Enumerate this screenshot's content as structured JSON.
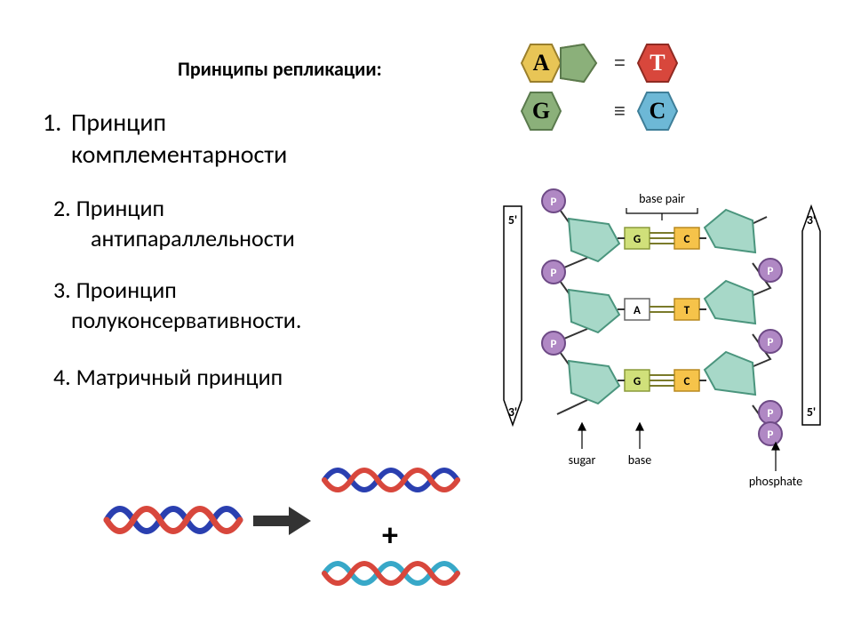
{
  "title": "Принципы репликации:",
  "items": [
    {
      "num": "1.",
      "text_l1": "Принцип",
      "text_l2": "комплементарности"
    },
    {
      "num": "2.",
      "text_l1": "Принцип",
      "text_l2": "антипараллельности"
    },
    {
      "num": "3.",
      "text_l1": "Проинцип",
      "text_l2": "полуконсервативности."
    },
    {
      "num": "4.",
      "text_l1": "Матричный принцип",
      "text_l2": ""
    }
  ],
  "legend": {
    "pairs": [
      {
        "left": "A",
        "right": "T",
        "left_fill": "#e8c556",
        "left_stroke": "#9a7f2c",
        "pent_fill": "#e8c556",
        "pent_stroke": "#9a7f2c",
        "right_fill": "#d8473c",
        "right_stroke": "#8f2a22",
        "right_text_color": "#ffffff",
        "equals": "="
      },
      {
        "left": "G",
        "right": "C",
        "left_fill": "#8bb07a",
        "left_stroke": "#5a7a4d",
        "pent_fill": "#8bb07a",
        "pent_stroke": "#5a7a4d",
        "right_fill": "#6db8d6",
        "right_stroke": "#3e7e98",
        "right_text_color": "#000000",
        "equals": "≡"
      }
    ]
  },
  "dna_diagram": {
    "labels": {
      "five_prime": "5'",
      "three_prime": "3'",
      "base_pair": "base pair",
      "sugar": "sugar",
      "base": "base",
      "phosphate": "phosphate"
    },
    "phosphate": {
      "label": "P",
      "fill": "#b088c4",
      "stroke": "#6e4a86",
      "text_color": "#ffffff"
    },
    "sugar": {
      "fill": "#a7d8c8",
      "stroke": "#4a957d"
    },
    "base_colors": {
      "G_fill": "#d0e07a",
      "G_stroke": "#8a9a3a",
      "C_fill": "#f6c34a",
      "C_stroke": "#b88a20",
      "A_fill": "#ffffff",
      "A_stroke": "#666666",
      "T_fill": "#f6c34a",
      "T_stroke": "#b88a20"
    },
    "rows": [
      {
        "left": "G",
        "right": "C",
        "bonds": 3
      },
      {
        "left": "A",
        "right": "T",
        "bonds": 2
      },
      {
        "left": "G",
        "right": "C",
        "bonds": 3
      }
    ],
    "arrow_stroke": "#000000",
    "backbone_stroke": "#333333"
  },
  "replication_diagram": {
    "strand_blue": "#2a3fb0",
    "strand_red": "#d8473c",
    "strand_cyan": "#38a8c8",
    "arrow_color": "#333333",
    "plus": "+"
  }
}
